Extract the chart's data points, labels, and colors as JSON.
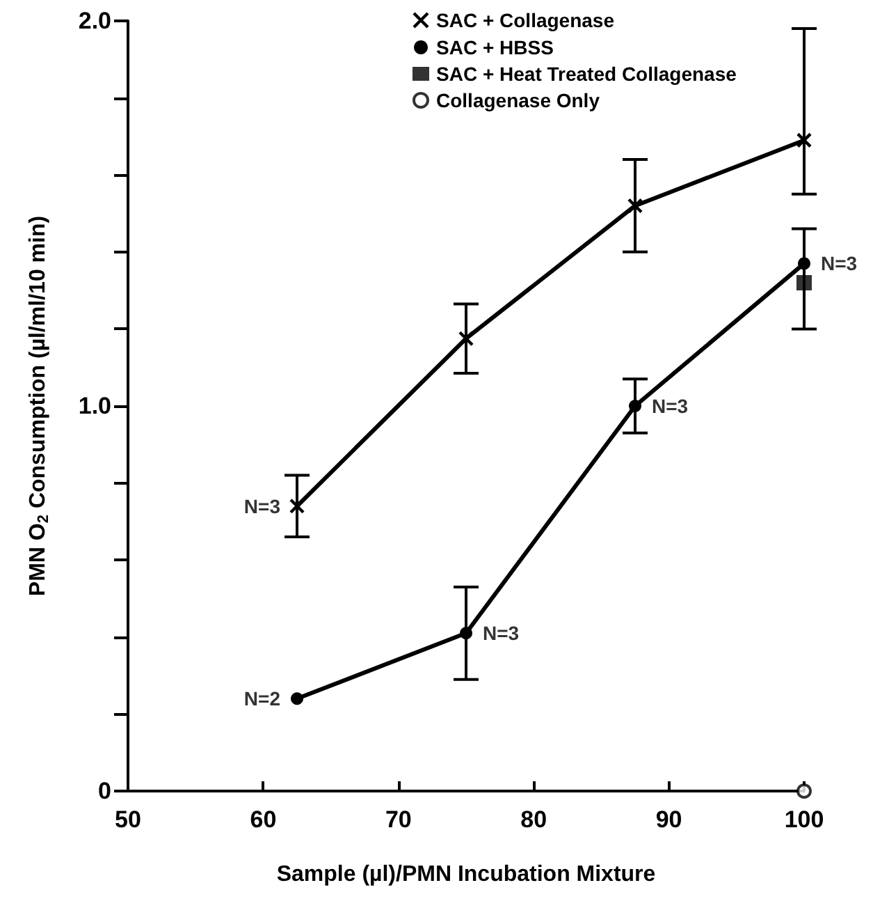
{
  "chart_data": {
    "type": "line",
    "xlabel": "Sample (µl)/PMN Incubation Mixture",
    "ylabel": "PMN O$_{2}$ Consumption (µl/ml/10 min)",
    "xlim": [
      50,
      100
    ],
    "xticks": [
      50,
      60,
      70,
      80,
      90,
      100
    ],
    "ylim": [
      0,
      2
    ],
    "yticks": [
      0,
      {
        "value": 0.2,
        "label": null
      },
      {
        "value": 0.4,
        "label": null
      },
      {
        "value": 0.6,
        "label": null
      },
      {
        "value": 0.8,
        "label": null
      },
      {
        "value": 1,
        "label": "1.0"
      },
      {
        "value": 1.2,
        "label": null
      },
      {
        "value": 1.4,
        "label": null
      },
      {
        "value": 1.6,
        "label": null
      },
      {
        "value": 1.8,
        "label": null
      },
      {
        "value": 2,
        "label": "2.0"
      }
    ],
    "grid": false,
    "legend": "top",
    "series": [
      {
        "name": "SAC + Collagenase",
        "color": "#000000",
        "marker": "cross",
        "x": [
          62.5,
          75,
          87.5,
          100
        ],
        "values": [
          0.74,
          1.175,
          1.52,
          1.69
        ],
        "errors": [
          0.08,
          0.09,
          0.12,
          [
            1.55,
            1.98
          ]
        ]
      },
      {
        "name": "SAC + HBSS",
        "color": "#000000",
        "marker": "circle",
        "x": [
          62.5,
          75,
          87.5,
          100
        ],
        "values": [
          0.24,
          0.41,
          1.0,
          1.37
        ],
        "errors": [
          null,
          0.12,
          0.07,
          [
            1.2,
            1.46
          ]
        ]
      },
      {
        "name": "SAC + Heat Treated Collagenase",
        "type": "scatter",
        "color": "#000000",
        "marker": "square",
        "x": [
          100
        ],
        "values": [
          1.32
        ]
      },
      {
        "name": "Collagenase Only",
        "type": "scatter",
        "color": "#ffffff",
        "marker": "circle",
        "x": [
          100
        ],
        "values": [
          0
        ]
      }
    ],
    "annotations": [
      {
        "text": "N=3",
        "x": 62.5,
        "y": 0.74
      },
      {
        "text": "N=2",
        "x": 62.5,
        "y": 0.24
      },
      {
        "text": "N=3",
        "x": 75,
        "y": 0.41
      },
      {
        "text": "N=3",
        "x": 87.5,
        "y": 1.0
      },
      {
        "text": "N=3",
        "x": 100,
        "y": 1.37
      }
    ]
  }
}
